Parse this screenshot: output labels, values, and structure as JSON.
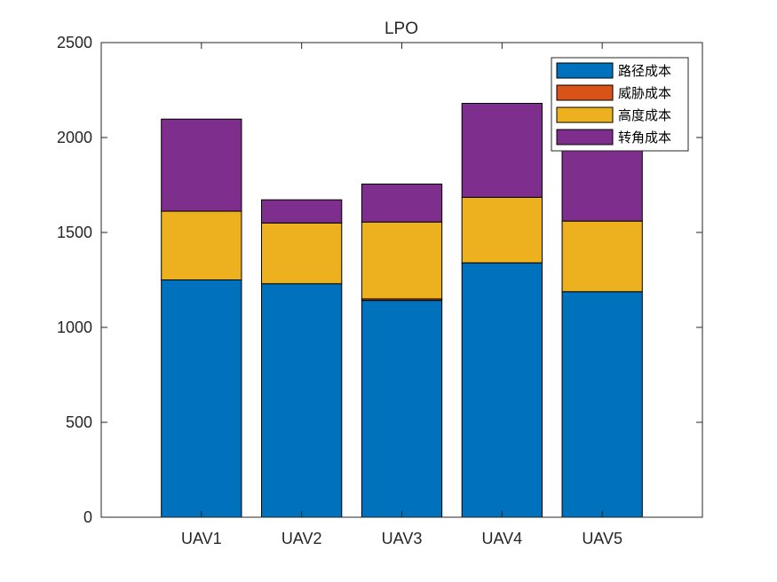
{
  "chart_data": {
    "type": "bar",
    "stacked": true,
    "title": "LPO",
    "xlabel": "",
    "ylabel": "",
    "categories": [
      "UAV1",
      "UAV2",
      "UAV3",
      "UAV4",
      "UAV5"
    ],
    "ylim": [
      0,
      2500
    ],
    "yticks": [
      0,
      500,
      1000,
      1500,
      2000,
      2500
    ],
    "grid": false,
    "legend_position": "top-right",
    "series": [
      {
        "name": "路径成本",
        "color": "#0072BD",
        "values": [
          1250,
          1230,
          1142,
          1340,
          1188
        ]
      },
      {
        "name": "威胁成本",
        "color": "#D95319",
        "values": [
          0,
          0,
          8,
          0,
          0
        ]
      },
      {
        "name": "高度成本",
        "color": "#EDB120",
        "values": [
          362,
          320,
          405,
          345,
          372
        ]
      },
      {
        "name": "转角成本",
        "color": "#7E2F8E",
        "values": [
          485,
          122,
          200,
          495,
          440
        ]
      }
    ]
  }
}
